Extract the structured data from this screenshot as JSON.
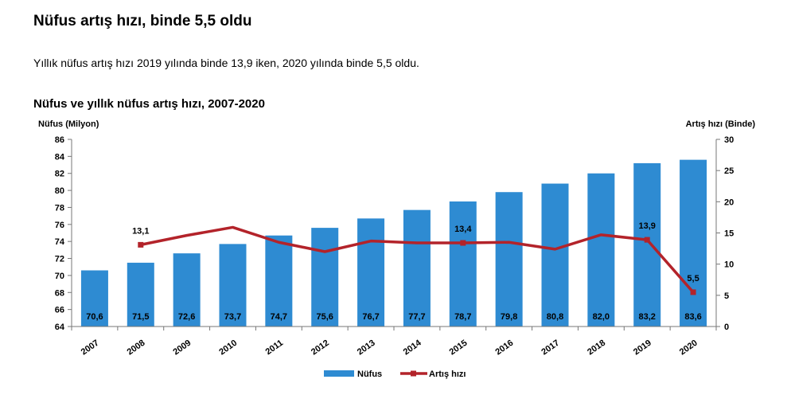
{
  "headline": "Nüfus artış hızı, binde 5,5 oldu",
  "subtitle": "Yıllık nüfus artış hızı 2019 yılında binde 13,9 iken, 2020 yılında binde 5,5 oldu.",
  "chart_data": {
    "type": "bar",
    "title": "Nüfus ve yıllık nüfus artış hızı, 2007-2020",
    "categories": [
      "2007",
      "2008",
      "2009",
      "2010",
      "2011",
      "2012",
      "2013",
      "2014",
      "2015",
      "2016",
      "2017",
      "2018",
      "2019",
      "2020"
    ],
    "left_axis": {
      "label": "Nüfus (Milyon)",
      "ylim": [
        64,
        86
      ],
      "ticks": [
        64,
        66,
        68,
        70,
        72,
        74,
        76,
        78,
        80,
        82,
        84,
        86
      ]
    },
    "right_axis": {
      "label": "Artış hızı (Binde)",
      "ylim": [
        0,
        30
      ],
      "ticks": [
        0,
        5,
        10,
        15,
        20,
        25,
        30
      ]
    },
    "grid": false,
    "legend_position": "bottom",
    "series": [
      {
        "name": "Nüfus",
        "type": "bar",
        "axis": "left",
        "color": "#2e8bd2",
        "values": [
          70.6,
          71.5,
          72.6,
          73.7,
          74.7,
          75.6,
          76.7,
          77.7,
          78.7,
          79.8,
          80.8,
          82.0,
          83.2,
          83.6
        ],
        "labels": [
          "70,6",
          "71,5",
          "72,6",
          "73,7",
          "74,7",
          "75,6",
          "76,7",
          "77,7",
          "78,7",
          "79,8",
          "80,8",
          "82,0",
          "83,2",
          "83,6"
        ]
      },
      {
        "name": "Artış hızı",
        "type": "line",
        "axis": "right",
        "color": "#b3232a",
        "values": [
          null,
          13.1,
          14.6,
          15.9,
          13.5,
          12.0,
          13.7,
          13.4,
          13.4,
          13.5,
          12.4,
          14.7,
          13.9,
          5.5
        ],
        "annotations": [
          {
            "index": 1,
            "text": "13,1"
          },
          {
            "index": 8,
            "text": "13,4"
          },
          {
            "index": 12,
            "text": "13,9"
          },
          {
            "index": 13,
            "text": "5,5"
          }
        ]
      }
    ]
  }
}
